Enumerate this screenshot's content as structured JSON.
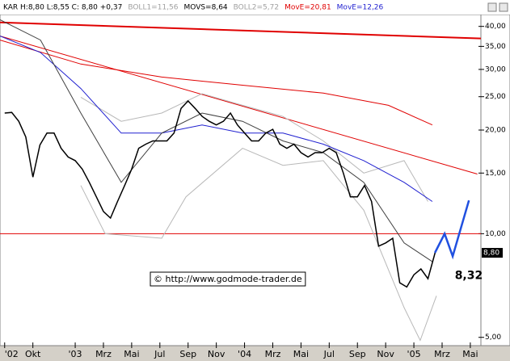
{
  "chart_data": {
    "type": "line",
    "header": [
      {
        "text": "KAR H:8,80 L:8,55 C: 8,80 +0,37",
        "color": "#000000"
      },
      {
        "text": "BOLL1=11,56",
        "color": "#a0a0a0"
      },
      {
        "text": "MOVS=8,64",
        "color": "#000000"
      },
      {
        "text": "BOLL2=5,72",
        "color": "#a0a0a0"
      },
      {
        "text": "MovE=20,81",
        "color": "#e00000"
      },
      {
        "text": "MovE=12,26",
        "color": "#2020d0"
      }
    ],
    "log_scale": true,
    "xlim": [
      -0.33,
      33.75
    ],
    "xticks": [
      {
        "value": 0,
        "label": "'02"
      },
      {
        "value": 2,
        "label": "Okt"
      },
      {
        "value": 5,
        "label": "'03"
      },
      {
        "value": 7,
        "label": "Mrz"
      },
      {
        "value": 9,
        "label": "Mai"
      },
      {
        "value": 11,
        "label": "Jul"
      },
      {
        "value": 13,
        "label": "Sep"
      },
      {
        "value": 15,
        "label": "Nov"
      },
      {
        "value": 17,
        "label": "'04"
      },
      {
        "value": 19,
        "label": "Mrz"
      },
      {
        "value": 21,
        "label": "Mai"
      },
      {
        "value": 23,
        "label": "Jul"
      },
      {
        "value": 25,
        "label": "Sep"
      },
      {
        "value": 27,
        "label": "Nov"
      },
      {
        "value": 29,
        "label": "'05"
      },
      {
        "value": 31,
        "label": "Mrz"
      },
      {
        "value": 33,
        "label": "Mai"
      }
    ],
    "ylim": [
      4.73,
      43.3
    ],
    "yticks": [
      {
        "value": 5,
        "label": "5,00"
      },
      {
        "value": 10,
        "label": "10,00"
      },
      {
        "value": 15,
        "label": "15,00"
      },
      {
        "value": 20,
        "label": "20,00"
      },
      {
        "value": 25,
        "label": "25,00"
      },
      {
        "value": 30,
        "label": "30,00"
      },
      {
        "value": 35,
        "label": "35,00"
      },
      {
        "value": 40,
        "label": "40,00"
      }
    ],
    "last_price": {
      "value": 8.8,
      "label": "8,80"
    },
    "hline": {
      "value": 10,
      "color": "#e00000"
    },
    "series": [
      {
        "color": "#e00000",
        "width": 2,
        "x": [
          -0.33,
          33.75
        ],
        "values": [
          41.1,
          36.9
        ]
      },
      {
        "color": "#e00000",
        "width": 1,
        "x": [
          -0.33,
          33.5
        ],
        "values": [
          37.5,
          14.9
        ]
      },
      {
        "color": "#e00000",
        "width": 1,
        "x": [
          -0.33,
          5.4,
          11.13,
          16.86,
          22.58,
          27.2,
          30.31
        ],
        "values": [
          36.5,
          31.1,
          28.5,
          27.0,
          25.6,
          23.6,
          20.7
        ]
      },
      {
        "color": "#b8b8b8",
        "width": 1,
        "x": [
          5.4,
          8.26,
          11.13,
          13.99,
          16.86,
          19.72,
          22.58,
          25.45,
          28.31,
          30.0
        ],
        "values": [
          24.9,
          21.2,
          22.4,
          25.5,
          23.6,
          21.9,
          18.6,
          15.0,
          16.3,
          12.4
        ]
      },
      {
        "color": "#b8b8b8",
        "width": 1,
        "x": [
          5.4,
          7.12,
          11.13,
          12.85,
          16.86,
          19.72,
          22.58,
          25.45,
          28.31,
          29.45,
          30.6
        ],
        "values": [
          13.8,
          10.0,
          9.7,
          12.8,
          17.7,
          15.8,
          16.3,
          11.7,
          6.1,
          4.9,
          6.6
        ]
      },
      {
        "color": "#2020d0",
        "width": 1,
        "x": [
          -0.33,
          2.54,
          5.4,
          8.26,
          11.13,
          13.99,
          16.86,
          19.72,
          22.58,
          25.45,
          28.31,
          30.31
        ],
        "values": [
          37.5,
          33.6,
          26.4,
          19.6,
          19.6,
          20.7,
          19.6,
          19.6,
          18.2,
          16.3,
          14.1,
          12.4
        ]
      },
      {
        "color": "#404040",
        "width": 1,
        "x": [
          -0.33,
          2.54,
          5.4,
          8.26,
          11.13,
          13.99,
          16.86,
          19.72,
          22.58,
          25.45,
          28.31,
          30.31
        ],
        "values": [
          41.8,
          36.5,
          22.4,
          14.1,
          19.6,
          22.4,
          21.2,
          18.6,
          17.2,
          14.1,
          9.4,
          8.3
        ]
      },
      {
        "color": "#000000",
        "width": 1.5,
        "x": [
          0,
          0.5,
          1,
          1.5,
          2,
          2.5,
          3,
          3.5,
          4,
          4.5,
          5,
          5.5,
          6,
          6.5,
          7,
          7.5,
          8,
          8.5,
          9,
          9.5,
          10,
          10.5,
          11,
          11.5,
          12,
          12.5,
          13,
          13.5,
          14,
          14.5,
          15,
          15.5,
          16,
          16.5,
          17,
          17.5,
          18,
          18.5,
          19,
          19.5,
          20,
          20.5,
          21,
          21.5,
          22,
          22.5,
          23,
          23.5,
          24,
          24.5,
          25,
          25.5,
          26,
          26.5,
          27,
          27.5,
          28,
          28.5,
          29,
          29.5,
          30,
          30.5
        ],
        "values": [
          22.4,
          22.5,
          21.2,
          19.1,
          14.6,
          18.1,
          19.6,
          19.6,
          17.7,
          16.7,
          16.3,
          15.4,
          14.1,
          12.8,
          11.6,
          11.1,
          12.4,
          13.8,
          15.4,
          17.7,
          18.2,
          18.6,
          18.6,
          18.6,
          19.6,
          23.1,
          24.3,
          23.1,
          21.9,
          21.2,
          20.7,
          21.2,
          22.4,
          20.7,
          19.6,
          18.6,
          18.6,
          19.6,
          20.1,
          18.2,
          17.7,
          18.2,
          17.2,
          16.7,
          17.2,
          17.2,
          17.7,
          17.2,
          15.0,
          12.8,
          12.8,
          13.8,
          12.4,
          9.2,
          9.4,
          9.7,
          7.2,
          7.0,
          7.6,
          7.9,
          7.4,
          8.8
        ]
      },
      {
        "color": "#2050e0",
        "width": 2.5,
        "x": [
          30.49,
          31.18,
          31.75,
          32.9
        ],
        "values": [
          8.8,
          10.0,
          8.6,
          12.5
        ]
      }
    ],
    "annotation": {
      "text": "8,32",
      "x": 31.9,
      "y": 7.55
    },
    "copyright": "© http://www.godmode-trader.de"
  }
}
